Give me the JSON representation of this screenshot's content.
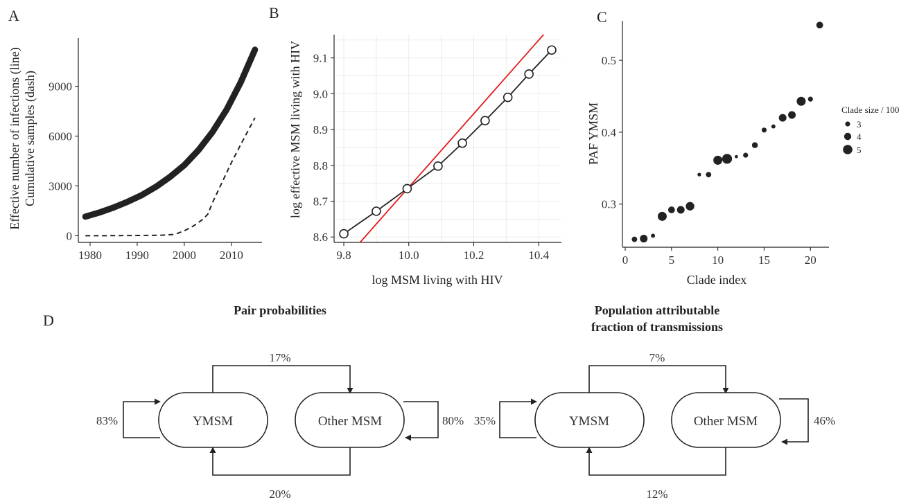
{
  "panels": {
    "a": "A",
    "b": "B",
    "c": "C",
    "d": "D"
  },
  "colors": {
    "ink": "#222222",
    "red_line": "#e41a1c",
    "grid": "#ebebeb"
  },
  "chart_data": [
    {
      "type": "line",
      "ylabel_line1": "Effective number of infections (line)",
      "ylabel_line2": "Cumulative samples (dash)",
      "xlabel": "",
      "xlim": [
        1977.5,
        2016.5
      ],
      "ylim": [
        -400,
        11900
      ],
      "xticks": [
        1980,
        1990,
        2000,
        2010
      ],
      "yticks": [
        0,
        3000,
        6000,
        9000
      ],
      "grid": false,
      "series": [
        {
          "style": "solid-thick",
          "x": [
            1979,
            1982,
            1985,
            1988,
            1991,
            1994,
            1997,
            2000,
            2003,
            2006,
            2009,
            2012,
            2015
          ],
          "y": [
            1150,
            1400,
            1700,
            2050,
            2450,
            2950,
            3550,
            4250,
            5150,
            6250,
            7600,
            9250,
            11200
          ]
        },
        {
          "style": "dashed",
          "x": [
            1979,
            1985,
            1990,
            1995,
            1998,
            2000,
            2002,
            2004,
            2005,
            2006,
            2008,
            2010,
            2012,
            2015
          ],
          "y": [
            0,
            5,
            15,
            30,
            80,
            300,
            600,
            1000,
            1300,
            2000,
            3200,
            4400,
            5500,
            7100
          ]
        }
      ]
    },
    {
      "type": "line",
      "xlabel": "log MSM living with HIV",
      "ylabel": "log effective MSM living with HIV",
      "xlim": [
        9.77,
        10.47
      ],
      "ylim": [
        8.585,
        9.165
      ],
      "xticks": [
        9.8,
        10.0,
        10.2,
        10.4
      ],
      "xtick_labels": [
        "9.8",
        "10.0",
        "10.2",
        "10.4"
      ],
      "yticks": [
        8.6,
        8.7,
        8.8,
        8.9,
        9.0,
        9.1
      ],
      "ytick_labels": [
        "8.6",
        "8.7",
        "8.8",
        "8.9",
        "9.0",
        "9.1"
      ],
      "grid": true,
      "points": {
        "x": [
          9.8,
          9.9,
          9.995,
          10.09,
          10.165,
          10.235,
          10.305,
          10.37,
          10.44
        ],
        "y": [
          8.609,
          8.672,
          8.735,
          8.798,
          8.862,
          8.925,
          8.99,
          9.055,
          9.122
        ]
      },
      "reference_line": {
        "x": [
          9.85,
          10.415
        ],
        "y": [
          8.585,
          9.165
        ]
      }
    },
    {
      "type": "scatter",
      "xlabel": "Clade index",
      "ylabel": "PAF YMSM",
      "xlim": [
        -0.3,
        22
      ],
      "ylim": [
        0.24,
        0.555
      ],
      "xticks": [
        0,
        5,
        10,
        15,
        20
      ],
      "yticks": [
        0.3,
        0.4,
        0.5
      ],
      "ytick_labels": [
        "0.3",
        "0.4",
        "0.5"
      ],
      "grid": false,
      "legend_title": "Clade size / 100",
      "legend_sizes": [
        3,
        4,
        5
      ],
      "legend_labels": [
        "3",
        "4",
        "5"
      ],
      "points": [
        {
          "x": 1,
          "y": 0.251,
          "size": 3.2
        },
        {
          "x": 2,
          "y": 0.252,
          "size": 4.2
        },
        {
          "x": 3,
          "y": 0.256,
          "size": 2.6
        },
        {
          "x": 4,
          "y": 0.283,
          "size": 4.8
        },
        {
          "x": 5,
          "y": 0.292,
          "size": 3.8
        },
        {
          "x": 6,
          "y": 0.292,
          "size": 4.2
        },
        {
          "x": 7,
          "y": 0.297,
          "size": 4.6
        },
        {
          "x": 8,
          "y": 0.341,
          "size": 2.4
        },
        {
          "x": 9,
          "y": 0.341,
          "size": 3.2
        },
        {
          "x": 10,
          "y": 0.361,
          "size": 4.8
        },
        {
          "x": 11,
          "y": 0.363,
          "size": 5.2
        },
        {
          "x": 12,
          "y": 0.366,
          "size": 2.2
        },
        {
          "x": 13,
          "y": 0.368,
          "size": 3.0
        },
        {
          "x": 14,
          "y": 0.382,
          "size": 3.4
        },
        {
          "x": 15,
          "y": 0.403,
          "size": 3.0
        },
        {
          "x": 16,
          "y": 0.408,
          "size": 2.6
        },
        {
          "x": 17,
          "y": 0.42,
          "size": 4.2
        },
        {
          "x": 18,
          "y": 0.424,
          "size": 4.2
        },
        {
          "x": 19,
          "y": 0.443,
          "size": 4.8
        },
        {
          "x": 20,
          "y": 0.446,
          "size": 3.0
        },
        {
          "x": 21,
          "y": 0.549,
          "size": 3.8
        }
      ]
    }
  ],
  "diagrams": [
    {
      "title_lines": [
        "Pair probabilities"
      ],
      "node_left": "YMSM",
      "node_right": "Other MSM",
      "self_left": "83%",
      "top": "17%",
      "self_right": "80%",
      "bottom": "20%"
    },
    {
      "title_lines": [
        "Population attributable",
        "fraction of transmissions"
      ],
      "node_left": "YMSM",
      "node_right": "Other MSM",
      "self_left": "35%",
      "top": "7%",
      "self_right": "46%",
      "bottom": "12%"
    }
  ]
}
